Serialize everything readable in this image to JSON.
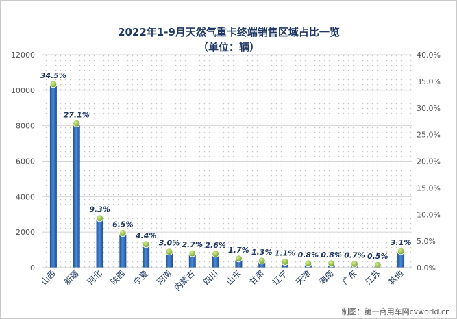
{
  "chart_data": {
    "type": "bar",
    "title": "2022年1-9月天然气重卡终端销售区域占比一览",
    "subtitle": "（单位：辆）",
    "categories": [
      "山西",
      "新疆",
      "河北",
      "陕西",
      "宁夏",
      "河南",
      "内蒙古",
      "四川",
      "山东",
      "甘肃",
      "辽宁",
      "天津",
      "海南",
      "广东",
      "江苏",
      "其他"
    ],
    "series": [
      {
        "values": [
          10350,
          8130,
          2790,
          1950,
          1320,
          900,
          810,
          780,
          510,
          390,
          330,
          240,
          240,
          210,
          150,
          930
        ]
      },
      {
        "axis": "right",
        "type": "line-markers",
        "values": [
          34.5,
          27.1,
          9.3,
          6.5,
          4.4,
          3.0,
          2.7,
          2.6,
          1.7,
          1.3,
          1.1,
          0.8,
          0.8,
          0.7,
          0.5,
          3.1
        ],
        "labels": [
          "34.5%",
          "27.1%",
          "9.3%",
          "6.5%",
          "4.4%",
          "3.0%",
          "2.7%",
          "2.6%",
          "1.7%",
          "1.3%",
          "1.1%",
          "0.8%",
          "0.8%",
          "0.7%",
          "0.5%",
          "3.1%"
        ]
      }
    ],
    "ylim": [
      0,
      12000
    ],
    "yticks": [
      0,
      2000,
      4000,
      6000,
      8000,
      10000,
      12000
    ],
    "y2lim": [
      0,
      40
    ],
    "y2ticks": [
      "0.0%",
      "5.0%",
      "10.0%",
      "15.0%",
      "20.0%",
      "25.0%",
      "30.0%",
      "35.0%",
      "40.0%"
    ],
    "grid": true,
    "bar_color": "#2e6fc0",
    "marker_color": "#8fbf3f"
  },
  "footer": {
    "credit": "制图：第一商用车网cvworld.cn"
  }
}
